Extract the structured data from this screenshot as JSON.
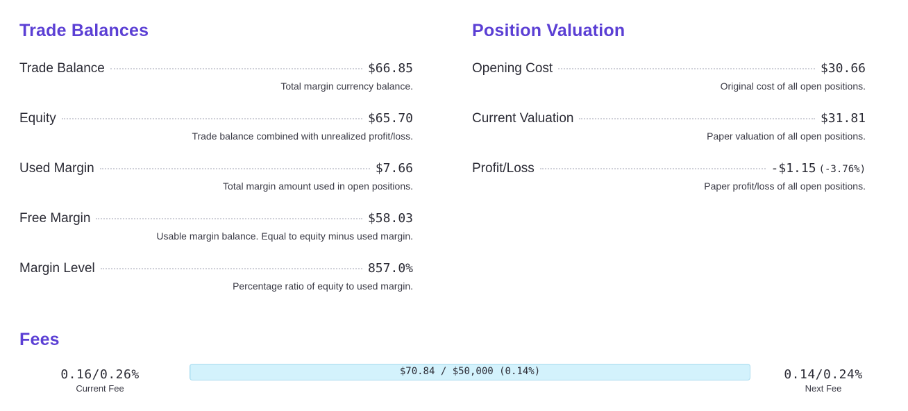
{
  "trade_balances": {
    "title": "Trade Balances",
    "rows": [
      {
        "label": "Trade Balance",
        "value": "$66.85",
        "desc": "Total margin currency balance."
      },
      {
        "label": "Equity",
        "value": "$65.70",
        "desc": "Trade balance combined with unrealized profit/loss."
      },
      {
        "label": "Used Margin",
        "value": "$7.66",
        "desc": "Total margin amount used in open positions."
      },
      {
        "label": "Free Margin",
        "value": "$58.03",
        "desc": "Usable margin balance. Equal to equity minus used margin."
      },
      {
        "label": "Margin Level",
        "value": "857.0%",
        "desc": "Percentage ratio of equity to used margin."
      }
    ]
  },
  "position_valuation": {
    "title": "Position Valuation",
    "rows": [
      {
        "label": "Opening Cost",
        "value": "$30.66",
        "desc": "Original cost of all open positions."
      },
      {
        "label": "Current Valuation",
        "value": "$31.81",
        "desc": "Paper valuation of all open positions."
      },
      {
        "label": "Profit/Loss",
        "value": "-$1.15",
        "pct": "(-3.76%)",
        "desc": "Paper profit/loss of all open positions."
      }
    ]
  },
  "fees": {
    "title": "Fees",
    "current_fee": "0.16/0.26%",
    "current_fee_caption": "Current Fee",
    "next_fee": "0.14/0.24%",
    "next_fee_caption": "Next Fee",
    "progress_text": "$70.84 / $50,000 (0.14%)",
    "progress_fraction": 0.0014,
    "bar_color": "#d3f2fc"
  }
}
